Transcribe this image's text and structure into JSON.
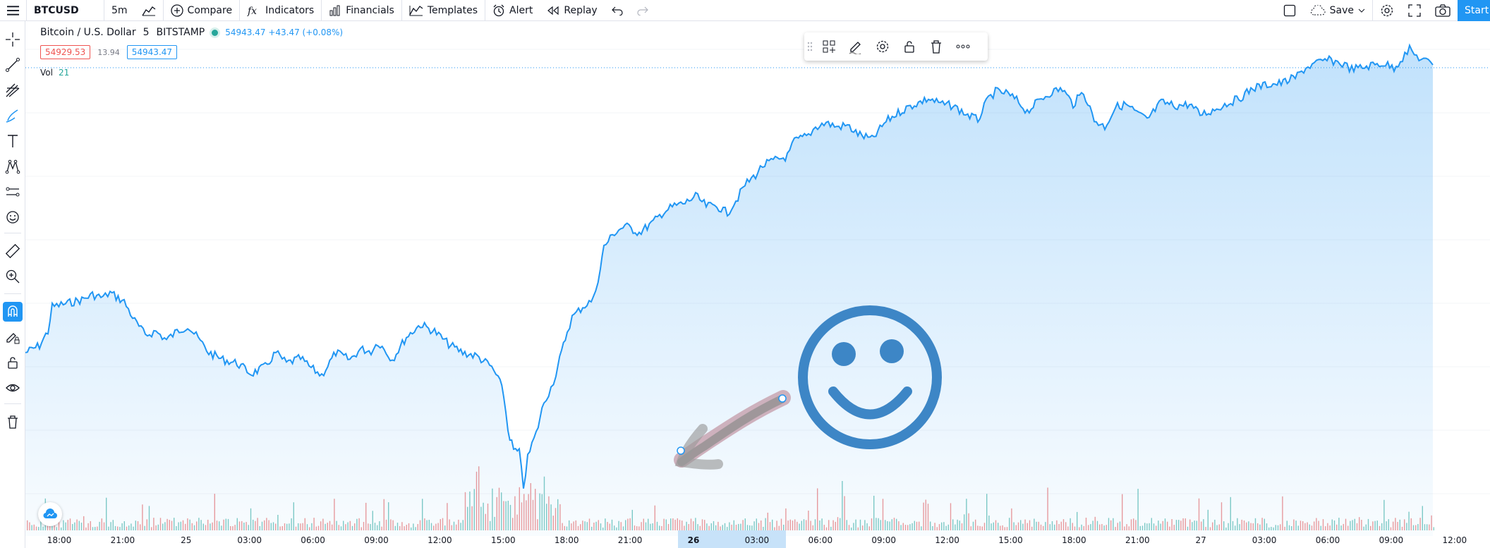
{
  "toolbar": {
    "symbol": "BTCUSD",
    "interval": "5m",
    "compare": "Compare",
    "indicators": "Indicators",
    "financials": "Financials",
    "templates": "Templates",
    "alert": "Alert",
    "replay": "Replay",
    "save": "Save",
    "start": "Start"
  },
  "legend": {
    "title": "Bitcoin / U.S. Dollar",
    "interval": "5",
    "exchange": "BITSTAMP",
    "quote": "54943.47 +43.47 (+0.08%)",
    "bid": "54929.53",
    "spread": "13.94",
    "ask": "54943.47",
    "vol_label": "Vol",
    "vol_value": "21"
  },
  "xaxis": {
    "labels": [
      "18:00",
      "21:00",
      "25",
      "03:00",
      "06:00",
      "09:00",
      "12:00",
      "15:00",
      "18:00",
      "21:00",
      "26",
      "03:00",
      "06:00",
      "09:00",
      "12:00",
      "15:00",
      "18:00",
      "21:00",
      "27",
      "03:00",
      "06:00",
      "09:00",
      "12:00"
    ],
    "highlighted": "26"
  },
  "colors": {
    "line": "#2196f3",
    "accent": "#2196f3",
    "up": "#26a69a",
    "down": "#ef5350",
    "smiley": "#3d86c6"
  }
}
